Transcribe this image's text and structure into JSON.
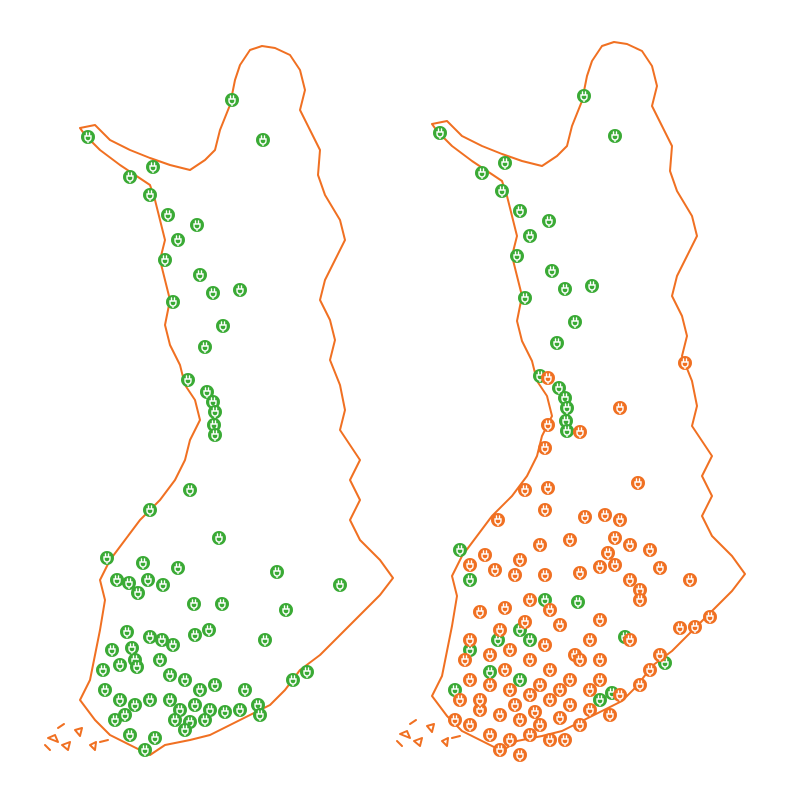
{
  "maps": [
    {
      "id": "left",
      "marker_colors": [
        "green"
      ]
    },
    {
      "id": "right",
      "marker_colors": [
        "green",
        "orange"
      ]
    }
  ],
  "colors": {
    "outline": "#f07022",
    "green": "#3aaa35",
    "orange": "#f07022",
    "icon": "#ffffff"
  },
  "marker_icon": "ev-charging-plug-icon"
}
